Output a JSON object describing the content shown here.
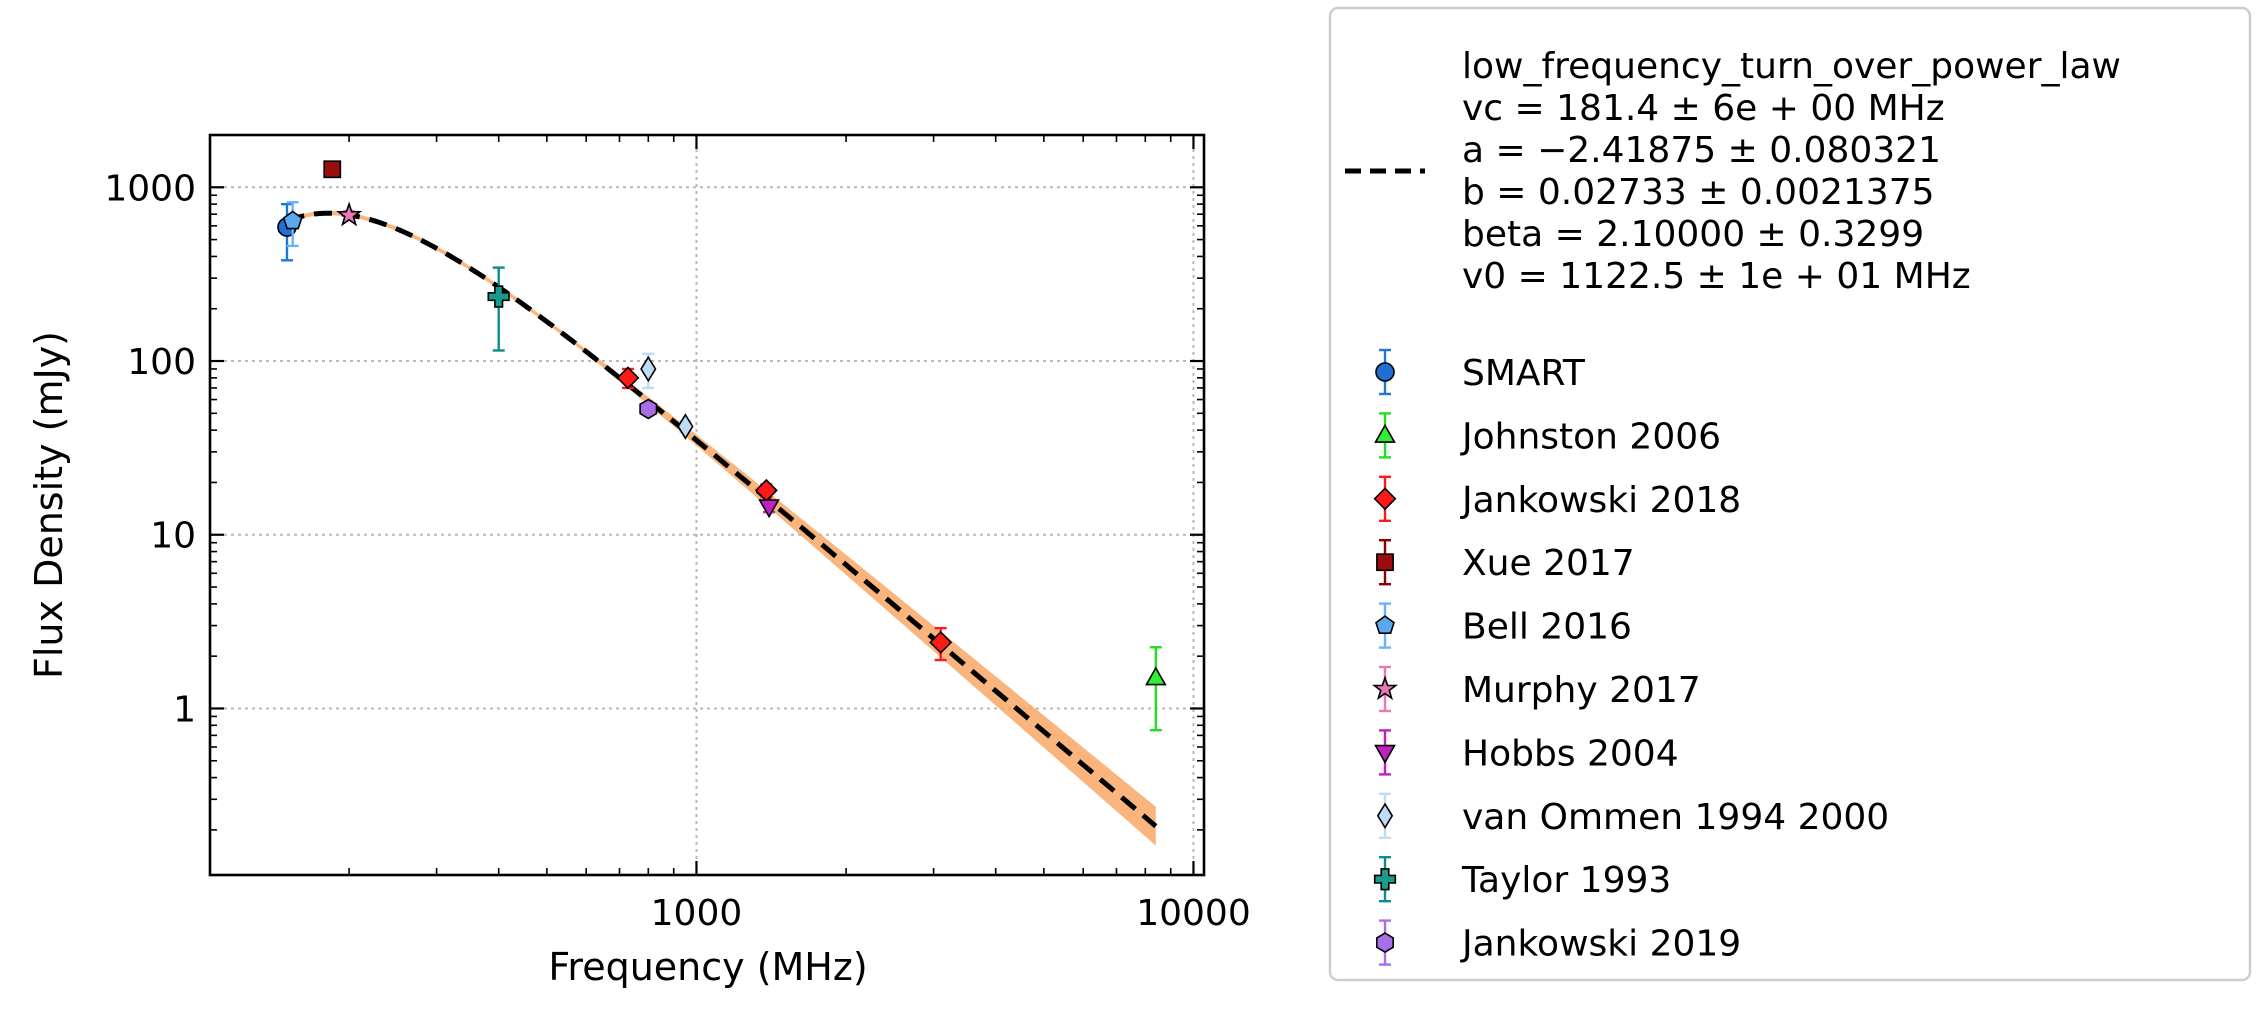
{
  "chart_data": {
    "type": "scatter",
    "xlabel": "Frequency (MHz)",
    "ylabel": "Flux Density (mJy)",
    "xscale": "log",
    "yscale": "log",
    "xlim": [
      105,
      10500
    ],
    "ylim": [
      0.11,
      2000
    ],
    "grid": true,
    "legend_position": "outside-right",
    "x_ticks": [
      {
        "value": 1000,
        "label": "1000"
      },
      {
        "value": 10000,
        "label": "10000"
      }
    ],
    "y_ticks": [
      {
        "value": 1,
        "label": "1"
      },
      {
        "value": 10,
        "label": "10"
      },
      {
        "value": 100,
        "label": "100"
      },
      {
        "value": 1000,
        "label": "1000"
      }
    ],
    "fit": {
      "legend_lines": [
        "low_frequency_turn_over_power_law",
        "vc = 181.4 ± 6e + 00 MHz",
        "a = −2.41875 ± 0.080321",
        "b = 0.02733 ± 0.0021375",
        "beta = 2.10000 ± 0.3299",
        "v0 = 1122.5 ± 1e + 01 MHz"
      ],
      "color": "#000000",
      "band_color": "#f7a35c",
      "x_range": [
        150,
        8400
      ],
      "params": {
        "vc": 181.4,
        "a": -2.41875,
        "b": 0.02733,
        "beta": 2.1,
        "v0": 1122.5
      }
    },
    "series": [
      {
        "name": "SMART",
        "marker": "circle",
        "color": "#1f6fd6",
        "ecolor": "#1f77d4",
        "points": [
          {
            "x": 150,
            "y": 590,
            "yerr": [
              210,
              210
            ]
          }
        ]
      },
      {
        "name": "Johnston 2006",
        "marker": "triangle-up",
        "color": "#33ee33",
        "ecolor": "#22dd22",
        "points": [
          {
            "x": 8400,
            "y": 1.5,
            "yerr": [
              0.75,
              0.75
            ]
          }
        ]
      },
      {
        "name": "Jankowski 2018",
        "marker": "diamond",
        "color": "#ff1a1a",
        "ecolor": "#ff1a1a",
        "points": [
          {
            "x": 728,
            "y": 80,
            "yerr": [
              10,
              10
            ]
          },
          {
            "x": 1382,
            "y": 18,
            "yerr": [
              1.5,
              1.5
            ]
          },
          {
            "x": 3100,
            "y": 2.4,
            "yerr": [
              0.5,
              0.5
            ]
          }
        ]
      },
      {
        "name": "Xue 2017",
        "marker": "square",
        "color": "#9b0d0d",
        "ecolor": "#8b0000",
        "points": [
          {
            "x": 185,
            "y": 1270,
            "yerr": [
              0,
              0
            ]
          }
        ]
      },
      {
        "name": "Bell 2016",
        "marker": "pentagon",
        "color": "#5aa9f0",
        "ecolor": "#66b3ff",
        "points": [
          {
            "x": 154,
            "y": 640,
            "yerr": [
              180,
              180
            ]
          }
        ]
      },
      {
        "name": "Murphy 2017",
        "marker": "star",
        "color": "#e879b5",
        "ecolor": "#e879b5",
        "points": [
          {
            "x": 200,
            "y": 690,
            "yerr": [
              40,
              40
            ]
          }
        ]
      },
      {
        "name": "Hobbs 2004",
        "marker": "triangle-down",
        "color": "#c020c0",
        "ecolor": "#c020c0",
        "points": [
          {
            "x": 1400,
            "y": 14.5,
            "yerr": [
              1,
              1
            ]
          }
        ]
      },
      {
        "name": "van Ommen 1994 2000",
        "marker": "thin-diamond",
        "color": "#bfdcf5",
        "ecolor": "#bfdcf5",
        "points": [
          {
            "x": 800,
            "y": 90,
            "yerr": [
              20,
              20
            ]
          },
          {
            "x": 950,
            "y": 42,
            "yerr": [
              3,
              3
            ]
          }
        ]
      },
      {
        "name": "Taylor 1993",
        "marker": "plus",
        "color": "#1a9a8a",
        "ecolor": "#0d8c8c",
        "points": [
          {
            "x": 400,
            "y": 235,
            "yerr": [
              120,
              110
            ]
          }
        ]
      },
      {
        "name": "Jankowski 2019",
        "marker": "hexagon",
        "color": "#a86ee8",
        "ecolor": "#a86ee8",
        "points": [
          {
            "x": 800,
            "y": 53,
            "yerr": [
              3,
              3
            ]
          }
        ]
      }
    ]
  }
}
